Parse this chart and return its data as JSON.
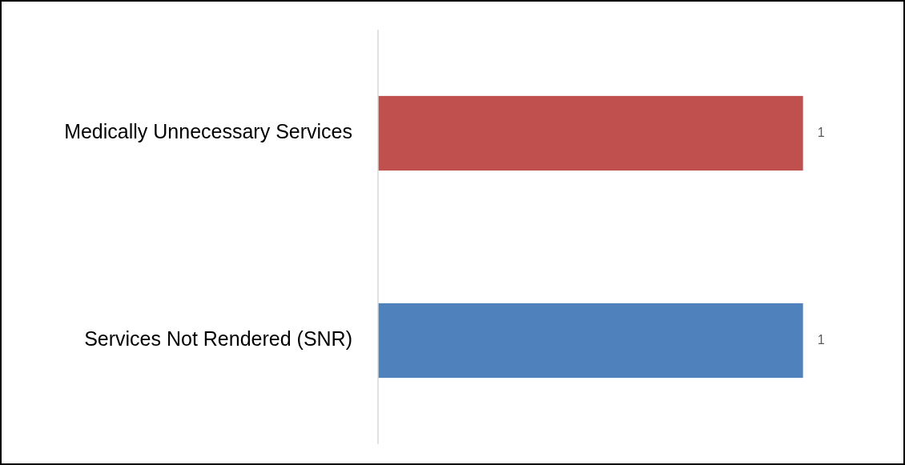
{
  "chart_data": {
    "type": "bar",
    "orientation": "horizontal",
    "categories": [
      "Medically Unnecessary Services",
      "Services Not Rendered (SNR)"
    ],
    "values": [
      1,
      1
    ],
    "colors": [
      "#c0504d",
      "#4f81bd"
    ],
    "data_labels": true
  }
}
